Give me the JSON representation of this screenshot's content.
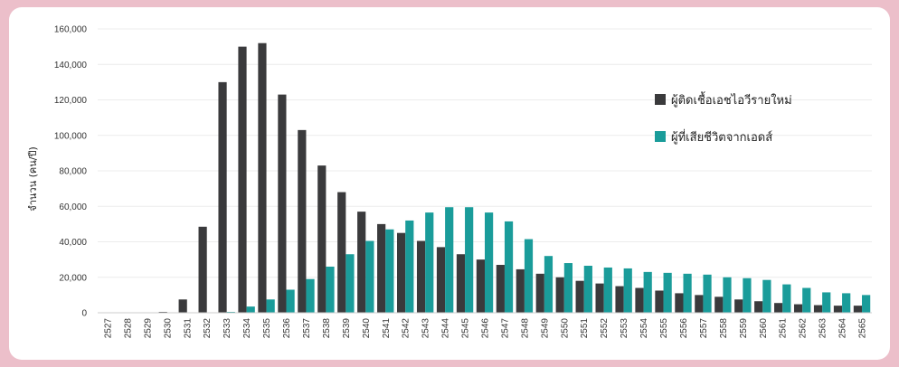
{
  "chart_data": {
    "type": "bar",
    "ylabel": "จำนวน (คน/ปี)",
    "ylim": [
      0,
      160000
    ],
    "yticks": [
      "0",
      "20,000",
      "40,000",
      "60,000",
      "80,000",
      "100,000",
      "120,000",
      "140,000",
      "160,000"
    ],
    "legend_position": "right",
    "categories": [
      "2527",
      "2528",
      "2529",
      "2530",
      "2531",
      "2532",
      "2533",
      "2534",
      "2535",
      "2536",
      "2537",
      "2538",
      "2539",
      "2540",
      "2541",
      "2542",
      "2543",
      "2544",
      "2545",
      "2546",
      "2547",
      "2548",
      "2549",
      "2550",
      "2551",
      "2552",
      "2553",
      "2554",
      "2555",
      "2556",
      "2557",
      "2558",
      "2559",
      "2560",
      "2561",
      "2562",
      "2563",
      "2564",
      "2565"
    ],
    "series": [
      {
        "name": "ผู้ติดเชื้อเอชไอวีรายใหม่",
        "color": "#3a3a3c",
        "values": [
          0,
          0,
          0,
          500,
          7500,
          48500,
          130000,
          150000,
          152000,
          123000,
          103000,
          83000,
          68000,
          57000,
          50000,
          45000,
          40500,
          37000,
          33000,
          30000,
          27000,
          24500,
          22000,
          20000,
          18000,
          16500,
          15000,
          14000,
          12500,
          11000,
          10000,
          9000,
          7500,
          6500,
          5500,
          4800,
          4300,
          4000,
          4000
        ]
      },
      {
        "name": "ผู้ที่เสียชีวิตจากเอดส์",
        "color": "#1a9c9a",
        "values": [
          0,
          0,
          0,
          0,
          0,
          0,
          500,
          3500,
          7500,
          13000,
          19000,
          26000,
          33000,
          40500,
          47000,
          52000,
          56500,
          59500,
          59500,
          56500,
          51500,
          41500,
          32000,
          28000,
          26500,
          25500,
          25000,
          23000,
          22500,
          22000,
          21500,
          20000,
          19500,
          18500,
          16000,
          14000,
          11500,
          11000,
          10000
        ]
      }
    ]
  }
}
